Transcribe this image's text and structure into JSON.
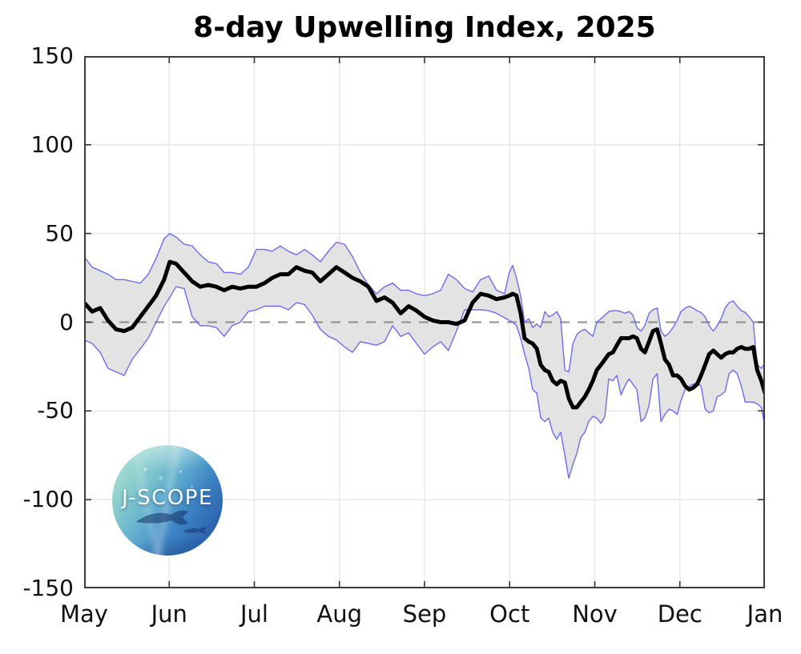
{
  "logo": {
    "text": "J-SCOPE"
  },
  "chart_data": {
    "type": "line",
    "title": "8-day Upwelling Index, 2025",
    "x_axis": {
      "tick_labels": [
        "May",
        "Jun",
        "Jul",
        "Aug",
        "Sep",
        "Oct",
        "Nov",
        "Dec",
        "Jan"
      ]
    },
    "y_axis": {
      "ticks": [
        150,
        100,
        50,
        0,
        -50,
        -100,
        -150
      ],
      "lim": [
        -150,
        150
      ]
    },
    "grid": true,
    "zero_reference_line": true,
    "legend_position": "none",
    "x_days_total": 245,
    "x_days": [
      0,
      2.9,
      5.8,
      8.6,
      11.5,
      14.4,
      17.3,
      20.2,
      23.1,
      25.9,
      28.8,
      30.8,
      33.1,
      36.0,
      38.9,
      41.8,
      44.7,
      47.6,
      50.4,
      53.3,
      56.2,
      59.1,
      62.0,
      64.9,
      67.7,
      70.6,
      73.5,
      76.4,
      79.3,
      82.1,
      85.0,
      87.9,
      90.8,
      93.7,
      96.6,
      99.4,
      102.3,
      105.2,
      108.1,
      111.0,
      113.9,
      116.8,
      119.6,
      122.5,
      125.4,
      128.3,
      131.1,
      134.0,
      136.9,
      139.8,
      142.7,
      145.6,
      148.4,
      151.3,
      153.0,
      154.2,
      155.6,
      157.1,
      158.5,
      160.0,
      161.4,
      162.9,
      164.3,
      165.8,
      167.2,
      168.6,
      170.1,
      171.5,
      173.0,
      174.4,
      175.9,
      177.3,
      178.7,
      180.2,
      181.6,
      183.1,
      184.5,
      186.0,
      187.4,
      188.8,
      190.3,
      191.7,
      193.2,
      194.6,
      196.1,
      197.5,
      198.9,
      200.4,
      201.8,
      203.3,
      204.7,
      206.2,
      207.6,
      209.0,
      210.5,
      211.9,
      213.4,
      214.8,
      216.3,
      217.7,
      219.1,
      220.6,
      222.0,
      223.5,
      224.9,
      226.4,
      227.8,
      229.2,
      230.7,
      232.1,
      233.6,
      235.0,
      236.5,
      237.9,
      239.3,
      240.8,
      242.2,
      243.7,
      245.0
    ],
    "series": [
      {
        "name": "ensemble mean",
        "color": "#000000",
        "width": 5,
        "values": [
          11,
          6,
          8,
          1,
          -4,
          -5,
          -3,
          3,
          9,
          15,
          24,
          34,
          33,
          28,
          23,
          20,
          21,
          20,
          18,
          20,
          19,
          20,
          20,
          22,
          25,
          27,
          27,
          31,
          29,
          28,
          23,
          27,
          31,
          28,
          25,
          23,
          20,
          12,
          14,
          11,
          5,
          9,
          6.5,
          3,
          1,
          0,
          0,
          -1,
          1,
          11,
          16,
          15,
          13,
          14,
          15,
          16,
          15,
          5,
          -9,
          -11,
          -12,
          -15,
          -24,
          -27,
          -28,
          -33,
          -35,
          -33,
          -34,
          -43,
          -48,
          -48,
          -45,
          -42,
          -38,
          -33,
          -27,
          -24,
          -21,
          -18,
          -17,
          -13,
          -9,
          -9,
          -9,
          -8,
          -9,
          -15,
          -17,
          -11,
          -5,
          -4,
          -12,
          -21,
          -24,
          -30,
          -30,
          -32,
          -36,
          -38,
          -37,
          -35,
          -30,
          -24,
          -18,
          -16,
          -18,
          -20,
          -18,
          -17,
          -17,
          -15,
          -14,
          -15,
          -15,
          -14,
          -27,
          -33,
          -40
        ]
      },
      {
        "name": "ensemble upper bound",
        "color": "#6f6cea",
        "width": 1.4,
        "values": [
          37,
          31,
          29,
          27,
          24,
          24,
          23,
          22,
          27,
          36,
          47,
          50,
          48,
          44,
          43,
          38,
          34,
          33,
          28,
          28,
          27,
          31,
          41,
          41,
          40,
          43,
          40,
          38,
          41,
          38,
          34,
          40,
          45,
          44,
          37,
          28,
          21,
          16,
          20,
          22,
          18,
          18,
          16,
          15,
          16,
          18,
          27,
          24,
          19,
          17,
          24,
          26,
          18,
          16,
          28,
          32,
          25,
          15,
          0,
          2,
          -3,
          -1,
          -3,
          6,
          3,
          4,
          6,
          2,
          -27,
          -28,
          -12,
          -7,
          -5,
          -4,
          -6,
          -8,
          0,
          2,
          4,
          6,
          6.5,
          6.5,
          6,
          5,
          6,
          4,
          -3,
          -5,
          -2,
          5,
          7,
          8,
          -5,
          -8,
          -6,
          -3,
          1,
          6,
          8,
          9,
          8,
          6.5,
          5.5,
          3,
          -2,
          -5,
          -2,
          2,
          8,
          11,
          12,
          9,
          6.5,
          5.5,
          3,
          0,
          -24,
          -26,
          -23
        ]
      },
      {
        "name": "ensemble lower bound",
        "color": "#6f6cea",
        "width": 1.4,
        "values": [
          -10,
          -12,
          -17,
          -26,
          -28,
          -30,
          -21,
          -15,
          -9,
          0,
          9,
          14,
          20,
          19,
          3,
          -2,
          -2,
          -3,
          -8,
          -2,
          0,
          6,
          7,
          9,
          9,
          9,
          7,
          11,
          10,
          4,
          -4,
          -8,
          -10,
          -14,
          -17,
          -11,
          -12,
          -13,
          -11,
          -2,
          -8,
          -6,
          -12,
          -18,
          -14,
          -11,
          -16,
          -5,
          7,
          7,
          7,
          6.5,
          5,
          2.5,
          1,
          0,
          -2,
          -9,
          -18,
          -26,
          -38,
          -40,
          -54,
          -56,
          -54,
          -62,
          -66,
          -62,
          -75,
          -88,
          -80,
          -74,
          -65,
          -62,
          -56,
          -53,
          -54,
          -57,
          -53,
          -32,
          -33,
          -30,
          -41,
          -36,
          -32,
          -35,
          -38,
          -56,
          -54,
          -47,
          -32,
          -29,
          -56,
          -52,
          -49,
          -50,
          -52,
          -44,
          -38,
          -36,
          -35,
          -34,
          -36,
          -49,
          -51,
          -50,
          -42,
          -41,
          -39,
          -29,
          -27,
          -29,
          -36,
          -45,
          -45,
          -45,
          -46,
          -48,
          -59
        ]
      }
    ],
    "band": {
      "between": [
        "ensemble upper bound",
        "ensemble lower bound"
      ],
      "fill": "#e3e3e3"
    },
    "colors": {
      "grid": "#e7e7e7",
      "zero_line": "#8c8c8c",
      "axis_box": "#3c3c3c",
      "tick": "#333333"
    }
  }
}
